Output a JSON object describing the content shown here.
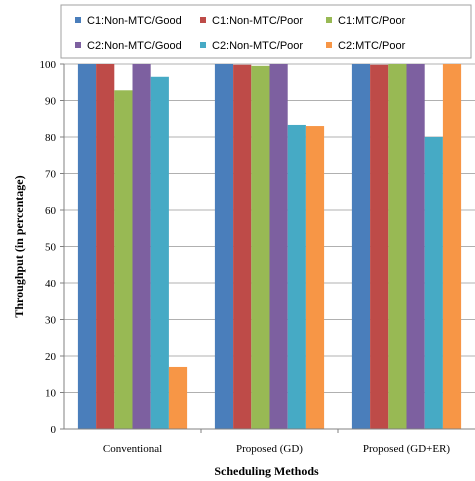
{
  "chart_data": {
    "type": "bar",
    "title": "",
    "xlabel": "Scheduling Methods",
    "ylabel": "Throughput (in percentage)",
    "ylim": [
      0,
      100
    ],
    "yticks": [
      0,
      10,
      20,
      30,
      40,
      50,
      60,
      70,
      80,
      90,
      100
    ],
    "grid": true,
    "legend_position": "top",
    "categories": [
      "Conventional",
      "Proposed (GD)",
      "Proposed (GD+ER)"
    ],
    "series": [
      {
        "name": "C1:Non-MTC/Good",
        "color": "#4a7ebb",
        "values": [
          100,
          100,
          100
        ]
      },
      {
        "name": "C1:Non-MTC/Poor",
        "color": "#be4b48",
        "values": [
          100,
          99.8,
          99.8
        ]
      },
      {
        "name": "C1:MTC/Poor",
        "color": "#98b954",
        "values": [
          92.8,
          99.5,
          100
        ]
      },
      {
        "name": "C2:Non-MTC/Good",
        "color": "#7d60a0",
        "values": [
          100,
          100,
          100
        ]
      },
      {
        "name": "C2:Non-MTC/Poor",
        "color": "#46aac5",
        "values": [
          96.5,
          83.3,
          80
        ]
      },
      {
        "name": "C2:MTC/Poor",
        "color": "#f79646",
        "values": [
          17,
          83,
          100
        ]
      }
    ]
  }
}
